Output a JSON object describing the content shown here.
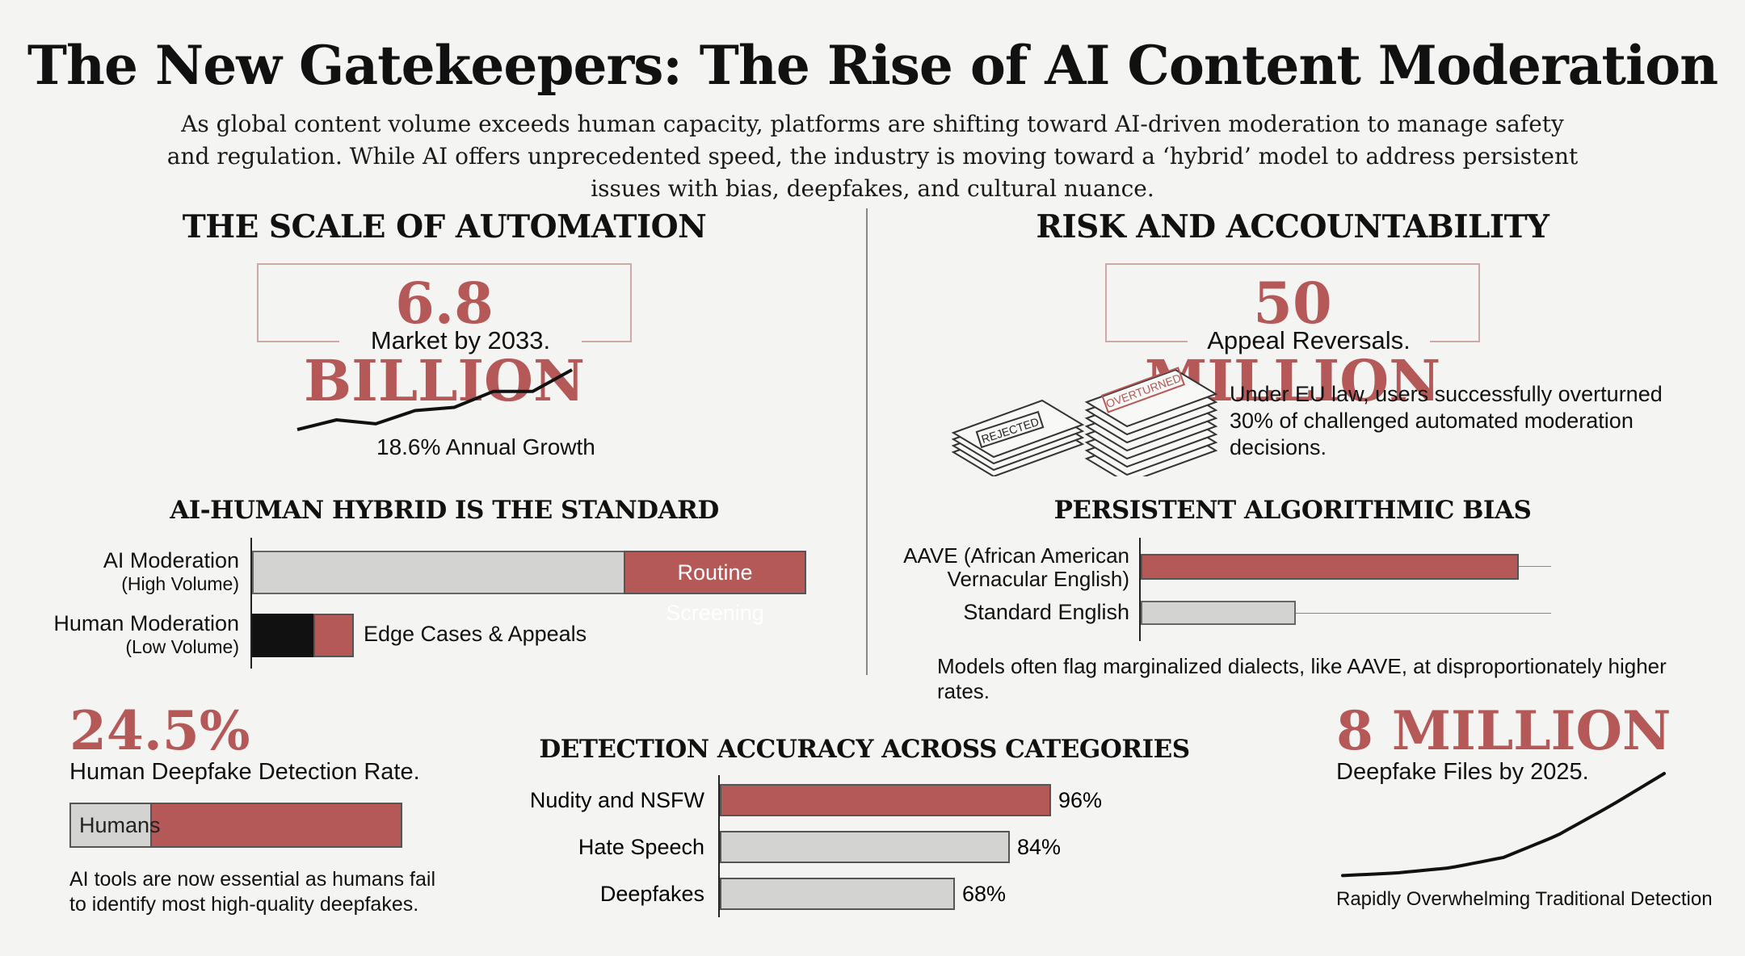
{
  "header": {
    "title": "The New Gatekeepers: The Rise of AI Content Moderation",
    "subtitle": "As global content volume exceeds human capacity, platforms are shifting toward AI-driven moderation to manage safety and regulation. While AI offers unprecedented speed, the industry is moving toward a ‘hybrid’ model to address persistent issues with bias, deepfakes, and cultural nuance."
  },
  "scale": {
    "heading": "THE SCALE OF AUTOMATION",
    "stat": "6.8 BILLION",
    "caption": "Market by 2033.",
    "growth_label": "18.6% Annual Growth"
  },
  "hybrid": {
    "heading": "AI-HUMAN HYBRID IS THE STANDARD",
    "ai_label": "AI Moderation",
    "ai_sub": "(High Volume)",
    "ai_segment": "Routine Screening",
    "human_label": "Human Moderation",
    "human_sub": "(Low Volume)",
    "human_segment": "Edge Cases & Appeals"
  },
  "risk": {
    "heading": "RISK AND ACCOUNTABILITY",
    "stat": "50 MILLION",
    "caption": "Appeal Reversals.",
    "stamp_rejected": "REJECTED",
    "stamp_overturned": "OVERTURNED",
    "note": "Under EU law, users successfully overturned 30% of challenged automated moderation decisions."
  },
  "bias": {
    "heading": "PERSISTENT ALGORITHMIC BIAS",
    "aave_label_1": "AAVE (African American",
    "aave_label_2": "Vernacular English)",
    "standard_label": "Standard English",
    "note": "Models often flag marginalized dialects, like AAVE, at disproportionately higher rates."
  },
  "human_detection": {
    "stat": "24.5%",
    "caption": "Human Deepfake Detection Rate.",
    "bar_label": "Humans",
    "rate": 0.245,
    "note_1": "AI tools are now essential as humans fail",
    "note_2": "to identify most high-quality deepfakes."
  },
  "deepfake_files": {
    "stat": "8 MILLION",
    "caption": "Deepfake Files by 2025.",
    "note": "Rapidly Overwhelming Traditional Detection"
  },
  "colors": {
    "accent": "#b45858",
    "gray_bar": "#d3d3d1",
    "background": "#f4f4f2"
  },
  "chart_data": [
    {
      "type": "line",
      "series": [
        {
          "values": [
            100,
            118.6,
            140.7,
            166.8,
            197.8,
            234.6,
            278.3,
            330.1
          ]
        }
      ],
      "annotation": "18.6% Annual Growth"
    },
    {
      "type": "bar",
      "title": "AI-HUMAN HYBRID IS THE STANDARD",
      "categories": [
        "AI Moderation (High Volume)",
        "Human Moderation (Low Volume)"
      ],
      "segment_labels": [
        "Routine Screening",
        "Edge Cases & Appeals"
      ],
      "values": [
        100,
        18
      ]
    },
    {
      "type": "bar",
      "title": "PERSISTENT ALGORITHMIC BIAS",
      "categories": [
        "AAVE (African American Vernacular English)",
        "Standard English"
      ],
      "values": [
        90,
        37
      ],
      "xlim": [
        0,
        100
      ]
    },
    {
      "type": "bar",
      "title": "DETECTION ACCURACY ACROSS CATEGORIES",
      "categories": [
        "Nudity and NSFW",
        "Hate Speech",
        "Deepfakes"
      ],
      "values": [
        96,
        84,
        68
      ],
      "value_labels": [
        "96%",
        "84%",
        "68%"
      ],
      "xlim": [
        0,
        100
      ],
      "highlight": "Nudity and NSFW"
    },
    {
      "type": "line",
      "series": [
        {
          "values": [
            0.1,
            0.3,
            0.7,
            1.5,
            3.2,
            5.5,
            8
          ]
        }
      ],
      "annotation": "Rapidly Overwhelming Traditional Detection"
    }
  ]
}
